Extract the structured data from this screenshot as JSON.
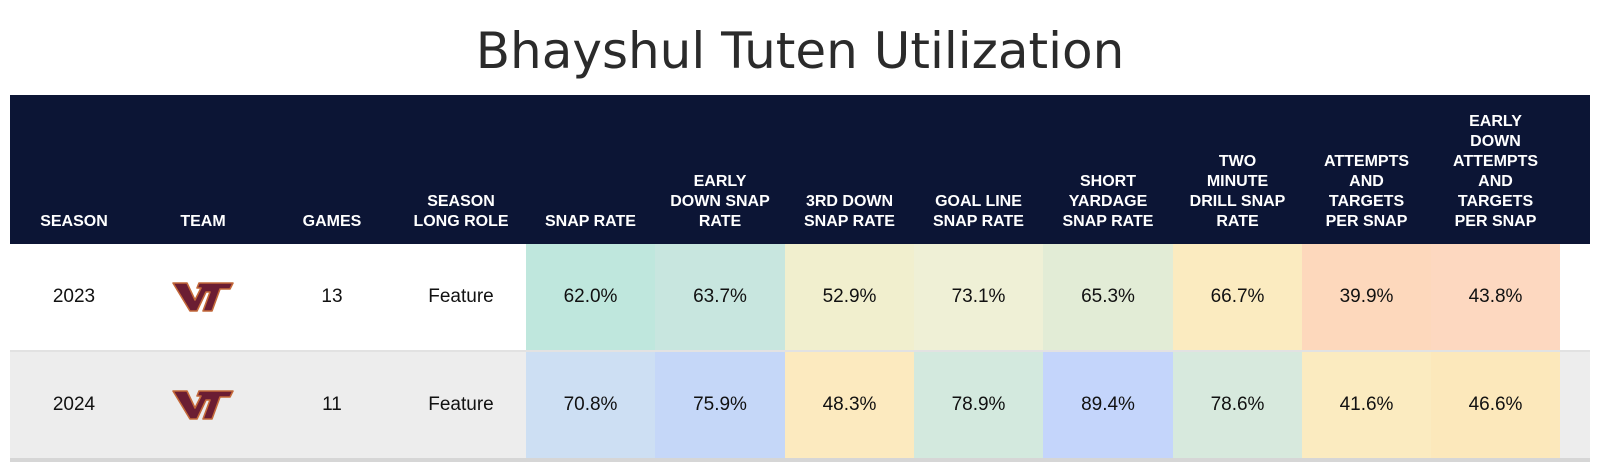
{
  "title": "Bhayshul Tuten Utilization",
  "columns": [
    "SEASON",
    "TEAM",
    "GAMES",
    "SEASON\nLONG ROLE",
    "SNAP RATE",
    "EARLY\nDOWN SNAP\nRATE",
    "3RD DOWN\nSNAP RATE",
    "GOAL LINE\nSNAP RATE",
    "SHORT\nYARDAGE\nSNAP RATE",
    "TWO\nMINUTE\nDRILL SNAP\nRATE",
    "ATTEMPTS\nAND\nTARGETS\nPER SNAP",
    "EARLY\nDOWN\nATTEMPTS\nAND\nTARGETS\nPER SNAP"
  ],
  "team_logo": {
    "icon": "vt-logo-icon",
    "fill": "#6b1d33",
    "outline": "#c4693a"
  },
  "rows": [
    {
      "season": "2023",
      "team": "VT",
      "games": "13",
      "role": "Feature",
      "stats": [
        "62.0%",
        "63.7%",
        "52.9%",
        "73.1%",
        "65.3%",
        "66.7%",
        "39.9%",
        "43.8%"
      ],
      "stat_colors": [
        "#bfe7dd",
        "#c8e6df",
        "#f1efce",
        "#eff0d6",
        "#e2ecd6",
        "#fbebc0",
        "#fdd8bc",
        "#fdd8c0"
      ]
    },
    {
      "season": "2024",
      "team": "VT",
      "games": "11",
      "role": "Feature",
      "stats": [
        "70.8%",
        "75.9%",
        "48.3%",
        "78.9%",
        "89.4%",
        "78.6%",
        "41.6%",
        "46.6%"
      ],
      "stat_colors": [
        "#cddff3",
        "#c5d7f8",
        "#fceabf",
        "#d3e9de",
        "#c4d5fb",
        "#d7e9dd",
        "#fbebc0",
        "#fce8bb"
      ]
    }
  ],
  "chart_data": {
    "type": "table",
    "title": "Bhayshul Tuten Utilization",
    "columns": [
      "SEASON",
      "TEAM",
      "GAMES",
      "SEASON LONG ROLE",
      "SNAP RATE",
      "EARLY DOWN SNAP RATE",
      "3RD DOWN SNAP RATE",
      "GOAL LINE SNAP RATE",
      "SHORT YARDAGE SNAP RATE",
      "TWO MINUTE DRILL SNAP RATE",
      "ATTEMPTS AND TARGETS PER SNAP",
      "EARLY DOWN ATTEMPTS AND TARGETS PER SNAP"
    ],
    "rows": [
      [
        "2023",
        "VT",
        13,
        "Feature",
        62.0,
        63.7,
        52.9,
        73.1,
        65.3,
        66.7,
        39.9,
        43.8
      ],
      [
        "2024",
        "VT",
        11,
        "Feature",
        70.8,
        75.9,
        48.3,
        78.9,
        89.4,
        78.6,
        41.6,
        46.6
      ]
    ]
  }
}
